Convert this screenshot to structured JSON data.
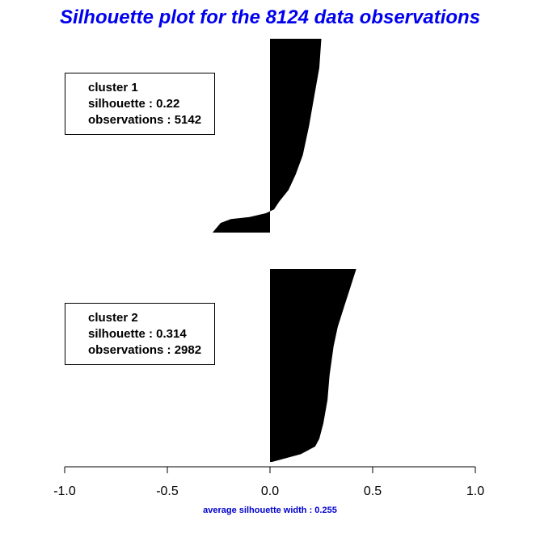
{
  "title": "Silhouette plot for the 8124 data observations",
  "footer": "average silhouette width : 0.255",
  "colors": {
    "title": "#0000ee",
    "footer": "#0000cc",
    "bars": "#000000"
  },
  "legend_boxes": [
    {
      "cluster": "cluster 1",
      "silhouette": "silhouette : 0.22",
      "observations": "observations : 5142"
    },
    {
      "cluster": "cluster 2",
      "silhouette": "silhouette : 0.314",
      "observations": "observations : 2982"
    }
  ],
  "chart_data": {
    "type": "area",
    "title": "Silhouette plot for the 8124 data observations",
    "xlim": [
      -1.0,
      1.0
    ],
    "x_ticks": [
      -1.0,
      -0.5,
      0.0,
      0.5,
      1.0
    ],
    "x_tick_labels": [
      "-1.0",
      "-0.5",
      "0.0",
      "0.5",
      "1.0"
    ],
    "xlabel": "average silhouette width : 0.255",
    "grid": false,
    "series": [
      {
        "name": "cluster 1",
        "silhouette": 0.22,
        "observations": 5142,
        "profile_fraction_from_top": [
          0.0,
          0.15,
          0.3,
          0.45,
          0.6,
          0.7,
          0.78,
          0.84,
          0.88,
          0.9,
          0.92,
          0.93,
          0.95,
          1.0
        ],
        "profile_width": [
          0.25,
          0.24,
          0.215,
          0.19,
          0.16,
          0.125,
          0.09,
          0.045,
          0.02,
          -0.02,
          -0.1,
          -0.19,
          -0.24,
          -0.28
        ]
      },
      {
        "name": "cluster 2",
        "silhouette": 0.314,
        "observations": 2982,
        "profile_fraction_from_top": [
          0.0,
          0.1,
          0.2,
          0.3,
          0.4,
          0.55,
          0.68,
          0.8,
          0.88,
          0.92,
          0.96,
          1.0
        ],
        "profile_width": [
          0.42,
          0.39,
          0.36,
          0.33,
          0.31,
          0.29,
          0.28,
          0.26,
          0.24,
          0.22,
          0.15,
          0.01
        ]
      }
    ]
  }
}
